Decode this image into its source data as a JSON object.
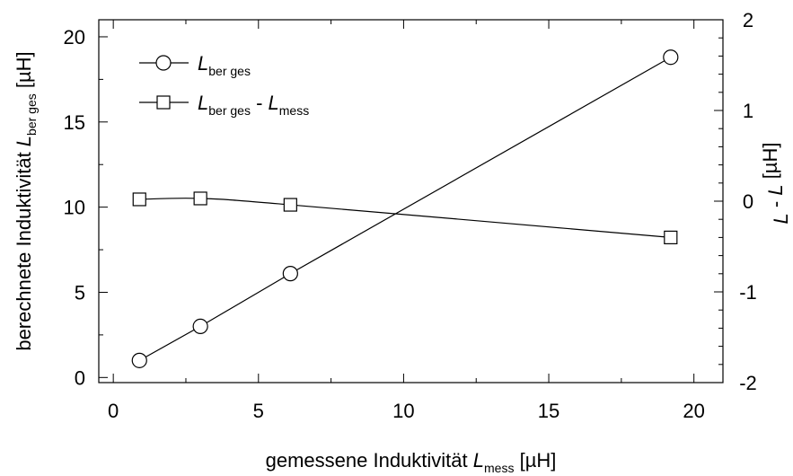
{
  "chart_data": {
    "type": "line",
    "title": "",
    "x_axis": {
      "label": {
        "prefix": "gemessene Induktivität ",
        "italic": "L",
        "sub": "mess",
        "suffix": " [µH]"
      },
      "lim": [
        -0.5,
        21.0
      ],
      "ticks": [
        0,
        5,
        10,
        15,
        20
      ],
      "tick_labels": [
        "0",
        "5",
        "10",
        "15",
        "20"
      ]
    },
    "y_axis_left": {
      "label": {
        "prefix": "berechnete Induktivität ",
        "italic": "L",
        "sub": "ber ges",
        "suffix": " [µH]"
      },
      "lim": [
        -0.3,
        21.0
      ],
      "ticks": [
        0,
        5,
        10,
        15,
        20
      ],
      "tick_labels": [
        "0",
        "5",
        "10",
        "15",
        "20"
      ]
    },
    "y_axis_right": {
      "label": {
        "italic1": "L",
        "sub1": "",
        "mid": " - ",
        "italic2": "L",
        "sub2": "",
        "suffix": " [µH]"
      },
      "lim": [
        -2.0,
        2.0
      ],
      "ticks": [
        -2,
        -1,
        0,
        1,
        2
      ],
      "tick_labels": [
        "-2",
        "-1",
        "0",
        "1",
        "2"
      ]
    },
    "grid": false,
    "legend_position": "top-left",
    "series": [
      {
        "name": {
          "italic": "L",
          "sub": "ber ges"
        },
        "marker": "circle",
        "axis": "left",
        "x": [
          0.9,
          3.0,
          6.1,
          19.2
        ],
        "y": [
          1.0,
          3.0,
          6.1,
          18.8
        ]
      },
      {
        "name": {
          "italic1": "L",
          "sub1": "ber ges",
          "mid": " - ",
          "italic2": "L",
          "sub2": "mess"
        },
        "marker": "square",
        "axis": "right",
        "x": [
          0.9,
          3.0,
          6.1,
          19.2
        ],
        "y": [
          0.02,
          0.03,
          -0.04,
          -0.4
        ]
      }
    ]
  }
}
